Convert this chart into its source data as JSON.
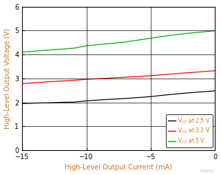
{
  "title": "",
  "xlabel": "High-Level Output Current (mA)",
  "ylabel": "High-Level Output Voltage (V)",
  "xlim": [
    -15,
    0
  ],
  "ylim": [
    0,
    6
  ],
  "xticks": [
    -15,
    -10,
    -5,
    0
  ],
  "yticks": [
    0,
    1,
    2,
    3,
    4,
    5,
    6
  ],
  "legend": [
    {
      "label": "V$_{CC}$ at 2.5 V",
      "color": "#000000"
    },
    {
      "label": "V$_{CC}$ at 3.3 V",
      "color": "#ff0000"
    },
    {
      "label": "V$_{CC}$ at 5 V",
      "color": "#00aa00"
    }
  ],
  "series": [
    {
      "name": "2.5V",
      "color": "#000000",
      "x": [
        -15,
        -14,
        -13,
        -12,
        -11,
        -10,
        -9,
        -8,
        -7,
        -6,
        -5,
        -4,
        -3,
        -2,
        -1,
        0
      ],
      "y": [
        1.95,
        1.97,
        1.98,
        2.0,
        2.01,
        2.06,
        2.1,
        2.13,
        2.16,
        2.2,
        2.24,
        2.3,
        2.35,
        2.4,
        2.44,
        2.48
      ]
    },
    {
      "name": "3.3V",
      "color": "#ff0000",
      "x": [
        -15,
        -14,
        -13,
        -12,
        -11,
        -10,
        -9,
        -8,
        -7,
        -6,
        -5,
        -4,
        -3,
        -2,
        -1,
        0
      ],
      "y": [
        2.78,
        2.82,
        2.86,
        2.89,
        2.92,
        2.96,
        2.99,
        3.02,
        3.05,
        3.08,
        3.11,
        3.16,
        3.2,
        3.24,
        3.28,
        3.32
      ]
    },
    {
      "name": "5V",
      "color": "#00aa00",
      "x": [
        -15,
        -14,
        -13,
        -12,
        -11,
        -10,
        -9,
        -8,
        -7,
        -6,
        -5,
        -4,
        -3,
        -2,
        -1,
        0
      ],
      "y": [
        4.1,
        4.14,
        4.18,
        4.22,
        4.26,
        4.36,
        4.42,
        4.46,
        4.52,
        4.6,
        4.68,
        4.76,
        4.83,
        4.89,
        4.94,
        4.99
      ]
    }
  ],
  "watermark": "©2011",
  "label_color": "#cc7722",
  "tick_color": "#000000",
  "spine_color": "#000000",
  "grid_color": "#000000",
  "background_color": "#ffffff",
  "legend_text_color": "#cc7722"
}
